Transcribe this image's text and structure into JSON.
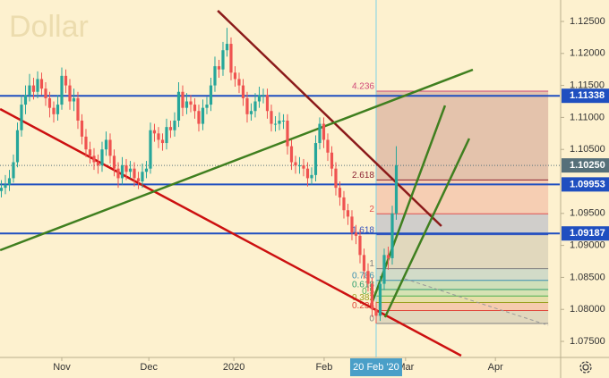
{
  "chart_data": {
    "type": "candlestick",
    "title": "Dollar",
    "xlim": [
      -15.33,
      123.56
    ],
    "ylim": [
      1.07249,
      1.12835
    ],
    "grid": false,
    "up_color": "#26a69a",
    "down_color": "#ef5350",
    "xticks": [
      {
        "value": 0,
        "label": "Nov"
      },
      {
        "value": 21.6,
        "label": "Dec"
      },
      {
        "value": 42.7,
        "label": "2020"
      },
      {
        "value": 65.1,
        "label": "Feb"
      },
      {
        "value": 85.3,
        "label": "Mar"
      },
      {
        "value": 107.6,
        "label": "Apr"
      }
    ],
    "crosshair": {
      "value": 78,
      "label": "20 Feb '20"
    },
    "yticks": [
      {
        "value": 1.125,
        "label": "1.12500"
      },
      {
        "value": 1.12,
        "label": "1.12000"
      },
      {
        "value": 1.115,
        "label": "1.11500"
      },
      {
        "value": 1.11,
        "label": "1.11000"
      },
      {
        "value": 1.105,
        "label": "1.10500"
      },
      {
        "value": 1.095,
        "label": "1.09500"
      },
      {
        "value": 1.09,
        "label": "1.09000"
      },
      {
        "value": 1.085,
        "label": "1.08500"
      },
      {
        "value": 1.08,
        "label": "1.08000"
      },
      {
        "value": 1.075,
        "label": "1.07500"
      }
    ],
    "hlines": [
      {
        "value": 1.11338,
        "label": "1.11338",
        "color": "#1f4fc0"
      },
      {
        "value": 1.09953,
        "label": "1.09953",
        "color": "#1f4fc0"
      },
      {
        "value": 1.09187,
        "label": "1.09187",
        "color": "#1f4fc0"
      }
    ],
    "last_price": {
      "value": 1.1025,
      "label": "1.10250",
      "color": "#56707a"
    },
    "trendlines": [
      {
        "color": "#8b1a1a",
        "dashed": false,
        "points": [
          [
            38.7,
            1.12668
          ],
          [
            94.2,
            1.09302
          ]
        ]
      },
      {
        "color": "#cc1010",
        "dashed": false,
        "points": [
          [
            -15.3,
            1.11131
          ],
          [
            99.1,
            1.07277
          ]
        ]
      },
      {
        "color": "#3f7f1f",
        "dashed": false,
        "points": [
          [
            -15.3,
            1.08925
          ],
          [
            102,
            1.11746
          ]
        ]
      },
      {
        "color": "#3f7f1f",
        "dashed": false,
        "points": [
          [
            76.9,
            1.08087
          ],
          [
            95.1,
            1.11187
          ]
        ]
      },
      {
        "color": "#3f7f1f",
        "dashed": false,
        "points": [
          [
            80.2,
            1.07877
          ],
          [
            101.1,
            1.1067
          ]
        ]
      },
      {
        "color": "#999999",
        "dashed": true,
        "points": [
          [
            85.1,
            1.08478
          ],
          [
            120.7,
            1.07751
          ]
        ]
      }
    ],
    "fib": {
      "x_range": [
        78,
        120.7
      ],
      "price0": 1.0778,
      "price1": 1.08637,
      "levels": [
        {
          "value": 0,
          "color": "#808080"
        },
        {
          "value": 0.236,
          "color": "#e0463a"
        },
        {
          "value": 0.382,
          "color": "#9aa020"
        },
        {
          "value": 0.5,
          "color": "#4caf50"
        },
        {
          "value": 0.618,
          "color": "#2e9e6e"
        },
        {
          "value": 0.786,
          "color": "#3a8fb0"
        },
        {
          "value": 1,
          "color": "#808080"
        },
        {
          "value": 1.618,
          "color": "#3050c0"
        },
        {
          "value": 2,
          "color": "#e05050"
        },
        {
          "value": 2.618,
          "color": "#8b2030"
        },
        {
          "value": 4.236,
          "color": "#d04878"
        }
      ]
    },
    "x": [
      -15,
      -14,
      -13,
      -12,
      -11,
      -10,
      -9,
      -8,
      -7,
      -6,
      -5,
      -4,
      -3,
      -2,
      -1,
      0,
      1,
      2,
      3,
      4,
      5,
      6,
      7,
      8,
      9,
      10,
      11,
      12,
      13,
      14,
      15,
      16,
      17,
      18,
      19,
      20,
      21,
      22,
      23,
      24,
      25,
      26,
      27,
      28,
      29,
      30,
      31,
      32,
      33,
      34,
      35,
      36,
      37,
      38,
      39,
      40,
      41,
      42,
      43,
      44,
      45,
      46,
      47,
      48,
      49,
      50,
      51,
      52,
      53,
      54,
      55,
      56,
      57,
      58,
      59,
      60,
      61,
      62,
      63,
      64,
      65,
      66,
      67,
      68,
      69,
      70,
      71,
      72,
      73,
      74,
      75,
      76,
      77,
      78,
      79,
      80,
      81,
      82,
      83
    ],
    "ohlc": [
      [
        1.0985,
        1.1002,
        1.0975,
        1.099
      ],
      [
        1.099,
        1.101,
        1.098,
        1.0995
      ],
      [
        1.0995,
        1.1018,
        1.0985,
        1.1005
      ],
      [
        1.1005,
        1.1042,
        1.0998,
        1.103
      ],
      [
        1.103,
        1.1092,
        1.1022,
        1.108
      ],
      [
        1.108,
        1.1135,
        1.107,
        1.112
      ],
      [
        1.112,
        1.115,
        1.1105,
        1.1135
      ],
      [
        1.1135,
        1.1168,
        1.1125,
        1.115
      ],
      [
        1.115,
        1.1162,
        1.1128,
        1.114
      ],
      [
        1.114,
        1.1172,
        1.113,
        1.116
      ],
      [
        1.116,
        1.117,
        1.1135,
        1.1145
      ],
      [
        1.1145,
        1.1155,
        1.1118,
        1.113
      ],
      [
        1.113,
        1.114,
        1.11,
        1.1115
      ],
      [
        1.1115,
        1.1125,
        1.1092,
        1.1105
      ],
      [
        1.1105,
        1.1135,
        1.1095,
        1.112
      ],
      [
        1.112,
        1.1178,
        1.1112,
        1.1165
      ],
      [
        1.1165,
        1.1175,
        1.1138,
        1.115
      ],
      [
        1.115,
        1.116,
        1.1112,
        1.1125
      ],
      [
        1.1125,
        1.1145,
        1.111,
        1.113
      ],
      [
        1.113,
        1.114,
        1.1082,
        1.1095
      ],
      [
        1.1095,
        1.1105,
        1.1058,
        1.107
      ],
      [
        1.107,
        1.1082,
        1.1038,
        1.105
      ],
      [
        1.105,
        1.1062,
        1.1028,
        1.104
      ],
      [
        1.104,
        1.1052,
        1.1018,
        1.103
      ],
      [
        1.103,
        1.1042,
        1.1012,
        1.1025
      ],
      [
        1.1025,
        1.1062,
        1.1015,
        1.105
      ],
      [
        1.105,
        1.1078,
        1.104,
        1.1065
      ],
      [
        1.1065,
        1.1075,
        1.1028,
        1.104
      ],
      [
        1.104,
        1.105,
        1.1008,
        1.102
      ],
      [
        1.102,
        1.103,
        1.099,
        1.1005
      ],
      [
        1.1005,
        1.1038,
        1.0995,
        1.1025
      ],
      [
        1.1025,
        1.1035,
        1.1002,
        1.1015
      ],
      [
        1.1015,
        1.1032,
        1.1005,
        1.102
      ],
      [
        1.102,
        1.103,
        1.0992,
        1.1005
      ],
      [
        1.1005,
        1.1015,
        1.0988,
        1.1
      ],
      [
        1.1,
        1.1028,
        1.099,
        1.1015
      ],
      [
        1.1015,
        1.1032,
        1.1005,
        1.102
      ],
      [
        1.102,
        1.1092,
        1.1012,
        1.108
      ],
      [
        1.108,
        1.109,
        1.1062,
        1.1075
      ],
      [
        1.1075,
        1.1085,
        1.1052,
        1.1065
      ],
      [
        1.1065,
        1.1075,
        1.1048,
        1.106
      ],
      [
        1.106,
        1.1098,
        1.105,
        1.1085
      ],
      [
        1.1085,
        1.1095,
        1.1068,
        1.108
      ],
      [
        1.108,
        1.1108,
        1.107,
        1.1095
      ],
      [
        1.1095,
        1.1155,
        1.1085,
        1.114
      ],
      [
        1.114,
        1.115,
        1.1102,
        1.1115
      ],
      [
        1.1115,
        1.1138,
        1.1105,
        1.1125
      ],
      [
        1.1125,
        1.1135,
        1.1108,
        1.112
      ],
      [
        1.112,
        1.113,
        1.1098,
        1.111
      ],
      [
        1.111,
        1.112,
        1.1078,
        1.109
      ],
      [
        1.109,
        1.1128,
        1.108,
        1.1115
      ],
      [
        1.1115,
        1.1132,
        1.1105,
        1.112
      ],
      [
        1.112,
        1.1162,
        1.111,
        1.115
      ],
      [
        1.115,
        1.1195,
        1.114,
        1.118
      ],
      [
        1.118,
        1.119,
        1.1162,
        1.1175
      ],
      [
        1.1175,
        1.1218,
        1.1165,
        1.1205
      ],
      [
        1.1205,
        1.124,
        1.1195,
        1.1215
      ],
      [
        1.1215,
        1.1225,
        1.1158,
        1.117
      ],
      [
        1.117,
        1.118,
        1.1148,
        1.116
      ],
      [
        1.116,
        1.117,
        1.1138,
        1.115
      ],
      [
        1.115,
        1.116,
        1.1118,
        1.113
      ],
      [
        1.113,
        1.114,
        1.1092,
        1.1105
      ],
      [
        1.1105,
        1.1122,
        1.1095,
        1.111
      ],
      [
        1.111,
        1.1138,
        1.11,
        1.1125
      ],
      [
        1.1125,
        1.1148,
        1.1115,
        1.1135
      ],
      [
        1.1135,
        1.1145,
        1.1122,
        1.1135
      ],
      [
        1.1135,
        1.1145,
        1.1098,
        1.111
      ],
      [
        1.111,
        1.112,
        1.1078,
        1.109
      ],
      [
        1.109,
        1.1102,
        1.1078,
        1.109
      ],
      [
        1.109,
        1.1108,
        1.108,
        1.1095
      ],
      [
        1.1095,
        1.1105,
        1.1082,
        1.1095
      ],
      [
        1.1095,
        1.1105,
        1.1042,
        1.1055
      ],
      [
        1.1055,
        1.1065,
        1.1018,
        1.103
      ],
      [
        1.103,
        1.104,
        1.1012,
        1.1025
      ],
      [
        1.1025,
        1.1038,
        1.1012,
        1.1025
      ],
      [
        1.1025,
        1.1035,
        1.1008,
        1.102
      ],
      [
        1.102,
        1.103,
        1.0992,
        1.1005
      ],
      [
        1.1005,
        1.1022,
        1.0995,
        1.101
      ],
      [
        1.101,
        1.1072,
        1.1,
        1.106
      ],
      [
        1.106,
        1.11,
        1.105,
        1.109
      ],
      [
        1.109,
        1.11,
        1.1052,
        1.1065
      ],
      [
        1.1065,
        1.1075,
        1.1032,
        1.1045
      ],
      [
        1.1045,
        1.1055,
        1.1008,
        1.102
      ],
      [
        1.102,
        1.103,
        1.0978,
        1.099
      ],
      [
        1.099,
        1.1,
        1.0962,
        1.0975
      ],
      [
        1.0975,
        1.0985,
        1.0942,
        1.0955
      ],
      [
        1.0955,
        1.0965,
        1.0932,
        1.0945
      ],
      [
        1.0945,
        1.0955,
        1.0908,
        1.092
      ],
      [
        1.092,
        1.0932,
        1.0902,
        1.0915
      ],
      [
        1.0915,
        1.0925,
        1.0872,
        1.0885
      ],
      [
        1.0885,
        1.0895,
        1.0848,
        1.086
      ],
      [
        1.086,
        1.0872,
        1.0828,
        1.084
      ],
      [
        1.084,
        1.085,
        1.0788,
        1.08
      ],
      [
        1.08,
        1.0812,
        1.0778,
        1.079
      ],
      [
        1.079,
        1.0852,
        1.0782,
        1.084
      ],
      [
        1.084,
        1.0895,
        1.083,
        1.0885
      ],
      [
        1.0885,
        1.0898,
        1.0862,
        1.088
      ],
      [
        1.088,
        1.0962,
        1.087,
        1.095
      ],
      [
        1.095,
        1.1055,
        1.094,
        1.1025
      ]
    ]
  }
}
